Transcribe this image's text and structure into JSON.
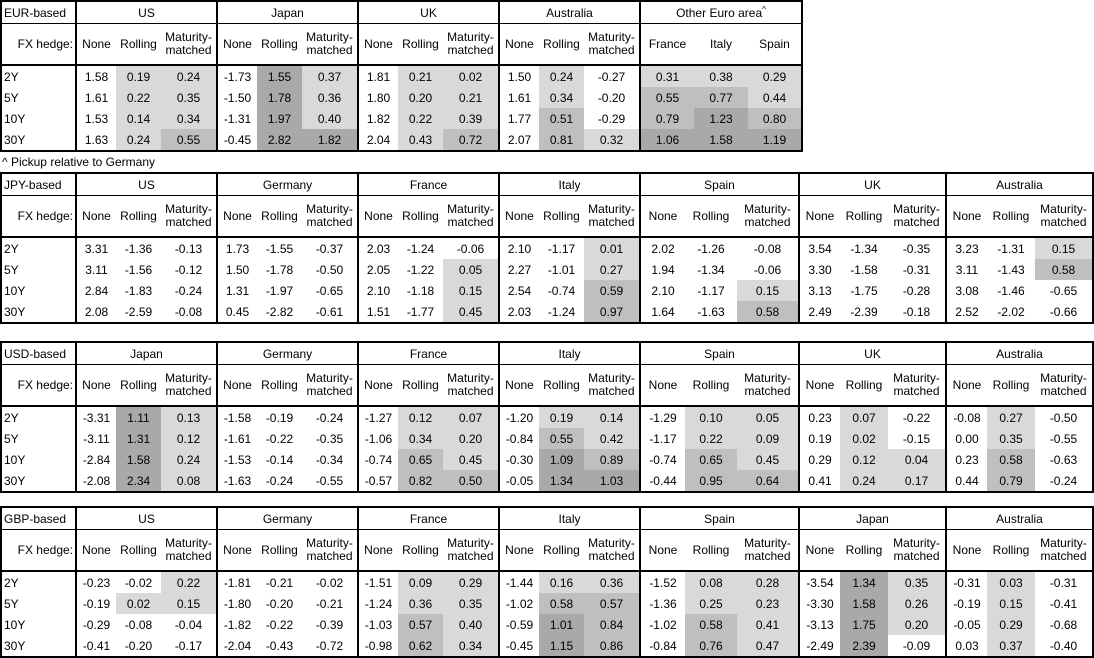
{
  "report": {
    "footnote": "^ Pickup relative to Germany",
    "fx_hedge_label": "FX hedge:",
    "tenor_labels": [
      "2Y",
      "5Y",
      "10Y",
      "30Y"
    ],
    "shading_colors": {
      "light": "#d9d9d9",
      "medium": "#bfbfbf",
      "dark": "#a9a9a9"
    },
    "tables": [
      {
        "label": "EUR-based",
        "groups": [
          {
            "name": "US",
            "columns": [
              "None",
              "Rolling",
              "Maturity-matched"
            ],
            "rows": [
              [
                "1.58",
                "0.19",
                "0.24"
              ],
              [
                "1.61",
                "0.22",
                "0.35"
              ],
              [
                "1.53",
                "0.14",
                "0.34"
              ],
              [
                "1.63",
                "0.24",
                "0.55"
              ]
            ]
          },
          {
            "name": "Japan",
            "columns": [
              "None",
              "Rolling",
              "Maturity-matched"
            ],
            "rows": [
              [
                "-1.73",
                "1.55",
                "0.37"
              ],
              [
                "-1.50",
                "1.78",
                "0.36"
              ],
              [
                "-1.31",
                "1.97",
                "0.40"
              ],
              [
                "-0.45",
                "2.82",
                "1.82"
              ]
            ]
          },
          {
            "name": "UK",
            "columns": [
              "None",
              "Rolling",
              "Maturity-matched"
            ],
            "rows": [
              [
                "1.81",
                "0.21",
                "0.02"
              ],
              [
                "1.80",
                "0.20",
                "0.21"
              ],
              [
                "1.82",
                "0.22",
                "0.39"
              ],
              [
                "2.04",
                "0.43",
                "0.72"
              ]
            ]
          },
          {
            "name": "Australia",
            "columns": [
              "None",
              "Rolling",
              "Maturity-matched"
            ],
            "rows": [
              [
                "1.50",
                "0.24",
                "-0.27"
              ],
              [
                "1.61",
                "0.34",
                "-0.20"
              ],
              [
                "1.77",
                "0.51",
                "-0.29"
              ],
              [
                "2.07",
                "0.81",
                "0.32"
              ]
            ]
          },
          {
            "name": "Other Euro area",
            "footnote_mark": "^",
            "columns": [
              "France",
              "Italy",
              "Spain"
            ],
            "rows": [
              [
                "0.31",
                "0.38",
                "0.29"
              ],
              [
                "0.55",
                "0.77",
                "0.44"
              ],
              [
                "0.79",
                "1.23",
                "0.80"
              ],
              [
                "1.06",
                "1.58",
                "1.19"
              ]
            ]
          }
        ]
      },
      {
        "label": "JPY-based",
        "groups": [
          {
            "name": "US",
            "columns": [
              "None",
              "Rolling",
              "Maturity-matched"
            ],
            "rows": [
              [
                "3.31",
                "-1.36",
                "-0.13"
              ],
              [
                "3.11",
                "-1.56",
                "-0.12"
              ],
              [
                "2.84",
                "-1.83",
                "-0.24"
              ],
              [
                "2.08",
                "-2.59",
                "-0.08"
              ]
            ]
          },
          {
            "name": "Germany",
            "columns": [
              "None",
              "Rolling",
              "Maturity-matched"
            ],
            "rows": [
              [
                "1.73",
                "-1.55",
                "-0.37"
              ],
              [
                "1.50",
                "-1.78",
                "-0.50"
              ],
              [
                "1.31",
                "-1.97",
                "-0.65"
              ],
              [
                "0.45",
                "-2.82",
                "-0.61"
              ]
            ]
          },
          {
            "name": "France",
            "columns": [
              "None",
              "Rolling",
              "Maturity-matched"
            ],
            "rows": [
              [
                "2.03",
                "-1.24",
                "-0.06"
              ],
              [
                "2.05",
                "-1.22",
                "0.05"
              ],
              [
                "2.10",
                "-1.18",
                "0.15"
              ],
              [
                "1.51",
                "-1.77",
                "0.45"
              ]
            ]
          },
          {
            "name": "Italy",
            "columns": [
              "None",
              "Rolling",
              "Maturity-matched"
            ],
            "rows": [
              [
                "2.10",
                "-1.17",
                "0.01"
              ],
              [
                "2.27",
                "-1.01",
                "0.27"
              ],
              [
                "2.54",
                "-0.74",
                "0.59"
              ],
              [
                "2.03",
                "-1.24",
                "0.97"
              ]
            ]
          },
          {
            "name": "Spain",
            "columns": [
              "None",
              "Rolling",
              "Maturity-matched"
            ],
            "rows": [
              [
                "2.02",
                "-1.26",
                "-0.08"
              ],
              [
                "1.94",
                "-1.34",
                "-0.06"
              ],
              [
                "2.10",
                "-1.17",
                "0.15"
              ],
              [
                "1.64",
                "-1.63",
                "0.58"
              ]
            ]
          },
          {
            "name": "UK",
            "columns": [
              "None",
              "Rolling",
              "Maturity-matched"
            ],
            "rows": [
              [
                "3.54",
                "-1.34",
                "-0.35"
              ],
              [
                "3.30",
                "-1.58",
                "-0.31"
              ],
              [
                "3.13",
                "-1.75",
                "-0.28"
              ],
              [
                "2.49",
                "-2.39",
                "-0.18"
              ]
            ]
          },
          {
            "name": "Australia",
            "columns": [
              "None",
              "Rolling",
              "Maturity-matched"
            ],
            "rows": [
              [
                "3.23",
                "-1.31",
                "0.15"
              ],
              [
                "3.11",
                "-1.43",
                "0.58"
              ],
              [
                "3.08",
                "-1.46",
                "-0.65"
              ],
              [
                "2.52",
                "-2.02",
                "-0.66"
              ]
            ]
          }
        ]
      },
      {
        "label": "USD-based",
        "groups": [
          {
            "name": "Japan",
            "columns": [
              "None",
              "Rolling",
              "Maturity-matched"
            ],
            "rows": [
              [
                "-3.31",
                "1.11",
                "0.13"
              ],
              [
                "-3.11",
                "1.31",
                "0.12"
              ],
              [
                "-2.84",
                "1.58",
                "0.24"
              ],
              [
                "-2.08",
                "2.34",
                "0.08"
              ]
            ]
          },
          {
            "name": "Germany",
            "columns": [
              "None",
              "Rolling",
              "Maturity-matched"
            ],
            "rows": [
              [
                "-1.58",
                "-0.19",
                "-0.24"
              ],
              [
                "-1.61",
                "-0.22",
                "-0.35"
              ],
              [
                "-1.53",
                "-0.14",
                "-0.34"
              ],
              [
                "-1.63",
                "-0.24",
                "-0.55"
              ]
            ]
          },
          {
            "name": "France",
            "columns": [
              "None",
              "Rolling",
              "Maturity-matched"
            ],
            "rows": [
              [
                "-1.27",
                "0.12",
                "0.07"
              ],
              [
                "-1.06",
                "0.34",
                "0.20"
              ],
              [
                "-0.74",
                "0.65",
                "0.45"
              ],
              [
                "-0.57",
                "0.82",
                "0.50"
              ]
            ]
          },
          {
            "name": "Italy",
            "columns": [
              "None",
              "Rolling",
              "Maturity-matched"
            ],
            "rows": [
              [
                "-1.20",
                "0.19",
                "0.14"
              ],
              [
                "-0.84",
                "0.55",
                "0.42"
              ],
              [
                "-0.30",
                "1.09",
                "0.89"
              ],
              [
                "-0.05",
                "1.34",
                "1.03"
              ]
            ]
          },
          {
            "name": "Spain",
            "columns": [
              "None",
              "Rolling",
              "Maturity-matched"
            ],
            "rows": [
              [
                "-1.29",
                "0.10",
                "0.05"
              ],
              [
                "-1.17",
                "0.22",
                "0.09"
              ],
              [
                "-0.74",
                "0.65",
                "0.45"
              ],
              [
                "-0.44",
                "0.95",
                "0.64"
              ]
            ]
          },
          {
            "name": "UK",
            "columns": [
              "None",
              "Rolling",
              "Maturity-matched"
            ],
            "rows": [
              [
                "0.23",
                "0.07",
                "-0.22"
              ],
              [
                "0.19",
                "0.02",
                "-0.15"
              ],
              [
                "0.29",
                "0.12",
                "0.04"
              ],
              [
                "0.41",
                "0.24",
                "0.17"
              ]
            ]
          },
          {
            "name": "Australia",
            "columns": [
              "None",
              "Rolling",
              "Maturity-matched"
            ],
            "rows": [
              [
                "-0.08",
                "0.27",
                "-0.50"
              ],
              [
                "0.00",
                "0.35",
                "-0.55"
              ],
              [
                "0.23",
                "0.58",
                "-0.63"
              ],
              [
                "0.44",
                "0.79",
                "-0.24"
              ]
            ]
          }
        ]
      },
      {
        "label": "GBP-based",
        "groups": [
          {
            "name": "US",
            "columns": [
              "None",
              "Rolling",
              "Maturity-matched"
            ],
            "rows": [
              [
                "-0.23",
                "-0.02",
                "0.22"
              ],
              [
                "-0.19",
                "0.02",
                "0.15"
              ],
              [
                "-0.29",
                "-0.08",
                "-0.04"
              ],
              [
                "-0.41",
                "-0.20",
                "-0.17"
              ]
            ]
          },
          {
            "name": "Germany",
            "columns": [
              "None",
              "Rolling",
              "Maturity-matched"
            ],
            "rows": [
              [
                "-1.81",
                "-0.21",
                "-0.02"
              ],
              [
                "-1.80",
                "-0.20",
                "-0.21"
              ],
              [
                "-1.82",
                "-0.22",
                "-0.39"
              ],
              [
                "-2.04",
                "-0.43",
                "-0.72"
              ]
            ]
          },
          {
            "name": "France",
            "columns": [
              "None",
              "Rolling",
              "Maturity-matched"
            ],
            "rows": [
              [
                "-1.51",
                "0.09",
                "0.29"
              ],
              [
                "-1.24",
                "0.36",
                "0.35"
              ],
              [
                "-1.03",
                "0.57",
                "0.40"
              ],
              [
                "-0.98",
                "0.62",
                "0.34"
              ]
            ]
          },
          {
            "name": "Italy",
            "columns": [
              "None",
              "Rolling",
              "Maturity-matched"
            ],
            "rows": [
              [
                "-1.44",
                "0.16",
                "0.36"
              ],
              [
                "-1.02",
                "0.58",
                "0.57"
              ],
              [
                "-0.59",
                "1.01",
                "0.84"
              ],
              [
                "-0.45",
                "1.15",
                "0.86"
              ]
            ]
          },
          {
            "name": "Spain",
            "columns": [
              "None",
              "Rolling",
              "Maturity-matched"
            ],
            "rows": [
              [
                "-1.52",
                "0.08",
                "0.28"
              ],
              [
                "-1.36",
                "0.25",
                "0.23"
              ],
              [
                "-1.02",
                "0.58",
                "0.41"
              ],
              [
                "-0.84",
                "0.76",
                "0.47"
              ]
            ]
          },
          {
            "name": "Japan",
            "columns": [
              "None",
              "Rolling",
              "Maturity-matched"
            ],
            "rows": [
              [
                "-3.54",
                "1.34",
                "0.35"
              ],
              [
                "-3.30",
                "1.58",
                "0.26"
              ],
              [
                "-3.13",
                "1.75",
                "0.20"
              ],
              [
                "-2.49",
                "2.39",
                "-0.09"
              ]
            ]
          },
          {
            "name": "Australia",
            "columns": [
              "None",
              "Rolling",
              "Maturity-matched"
            ],
            "rows": [
              [
                "-0.31",
                "0.03",
                "-0.31"
              ],
              [
                "-0.19",
                "0.15",
                "-0.41"
              ],
              [
                "-0.05",
                "0.29",
                "-0.68"
              ],
              [
                "0.03",
                "0.37",
                "-0.40"
              ]
            ]
          }
        ]
      }
    ]
  }
}
